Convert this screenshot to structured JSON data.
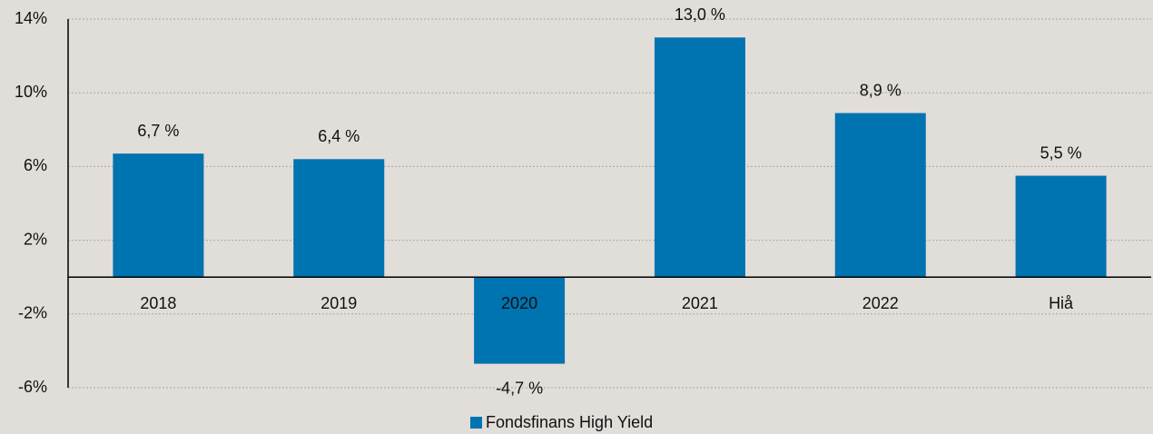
{
  "chart_data": {
    "type": "bar",
    "categories": [
      "2018",
      "2019",
      "2020",
      "2021",
      "2022",
      "Hiå"
    ],
    "series": [
      {
        "name": "Fondsfinans High Yield",
        "color": "#0073b1",
        "values": [
          6.7,
          6.4,
          -4.7,
          13.0,
          8.9,
          5.5
        ],
        "value_labels": [
          "6,7 %",
          "6,4 %",
          "-4,7 %",
          "13,0 %",
          "8,9 %",
          "5,5 %"
        ]
      }
    ],
    "ylim": [
      -6,
      14
    ],
    "yticks": [
      {
        "value": 14,
        "label": "14%"
      },
      {
        "value": 10,
        "label": "10%"
      },
      {
        "value": 6,
        "label": "6%"
      },
      {
        "value": 2,
        "label": "2%"
      },
      {
        "value": -2,
        "label": "-2%"
      },
      {
        "value": -6,
        "label": "-6%"
      }
    ],
    "grid": true,
    "legend": "bottom"
  }
}
